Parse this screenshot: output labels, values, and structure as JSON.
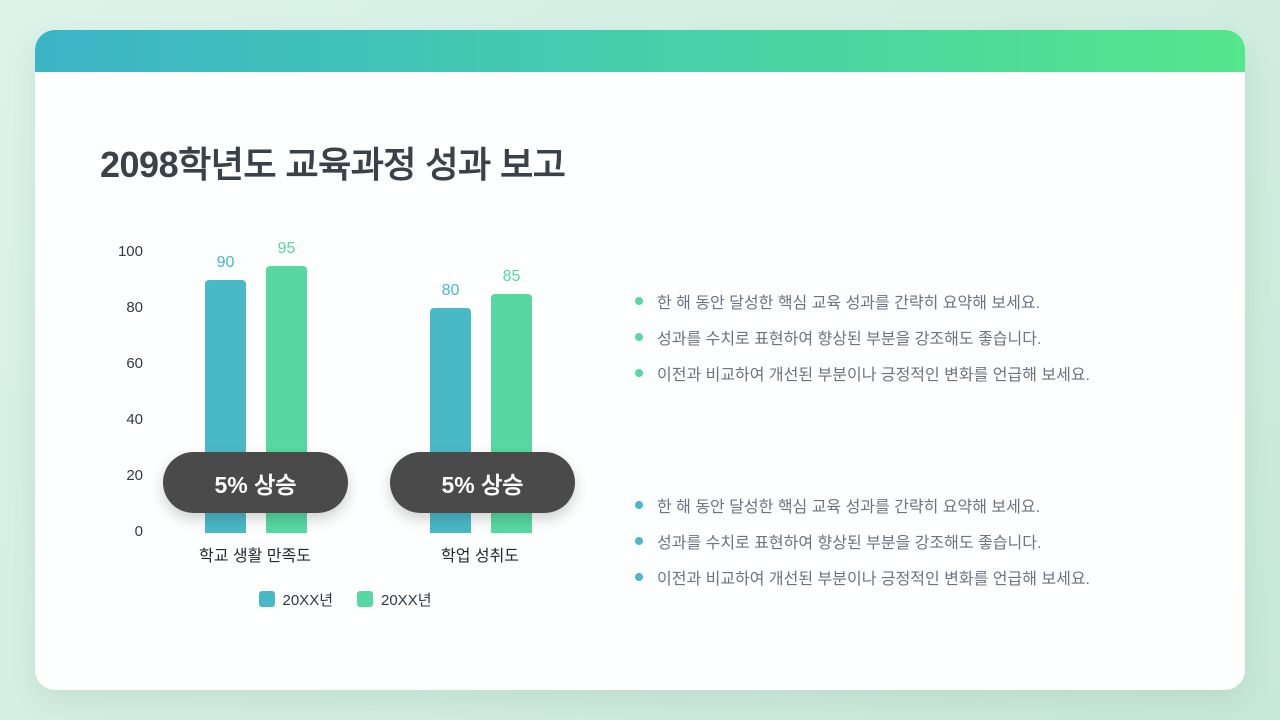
{
  "slide": {
    "title": "2098학년도 교육과정 성과 보고"
  },
  "chart_data": {
    "type": "bar",
    "title": "",
    "categories": [
      "학교 생활 만족도",
      "학업 성취도"
    ],
    "series": [
      {
        "name": "20XX년",
        "color": "#4ab9c7",
        "values": [
          90,
          80
        ]
      },
      {
        "name": "20XX년",
        "color": "#57d8a2",
        "values": [
          95,
          85
        ]
      }
    ],
    "y_ticks": [
      "100",
      "80",
      "60",
      "40",
      "20",
      "0"
    ],
    "ylim": [
      0,
      100
    ],
    "grid": false,
    "legend_position": "bottom",
    "annotations": [
      "5% 상승",
      "5% 상승"
    ]
  },
  "notes": {
    "group1": {
      "bullet_color": "#57d8a2",
      "items": [
        "한 해 동안 달성한 핵심 교육 성과를 간략히 요약해 보세요.",
        "성과를 수치로 표현하여 향상된 부분을 강조해도 좋습니다.",
        "이전과 비교하여 개선된 부분이나 긍정적인 변화를 언급해 보세요."
      ]
    },
    "group2": {
      "bullet_color": "#4ab9c7",
      "items": [
        "한 해 동안 달성한 핵심 교육 성과를 간략히 요약해 보세요.",
        "성과를 수치로 표현하여 향상된 부분을 강조해도 좋습니다.",
        "이전과 비교하여 개선된 부분이나 긍정적인 변화를 언급해 보세요."
      ]
    }
  }
}
